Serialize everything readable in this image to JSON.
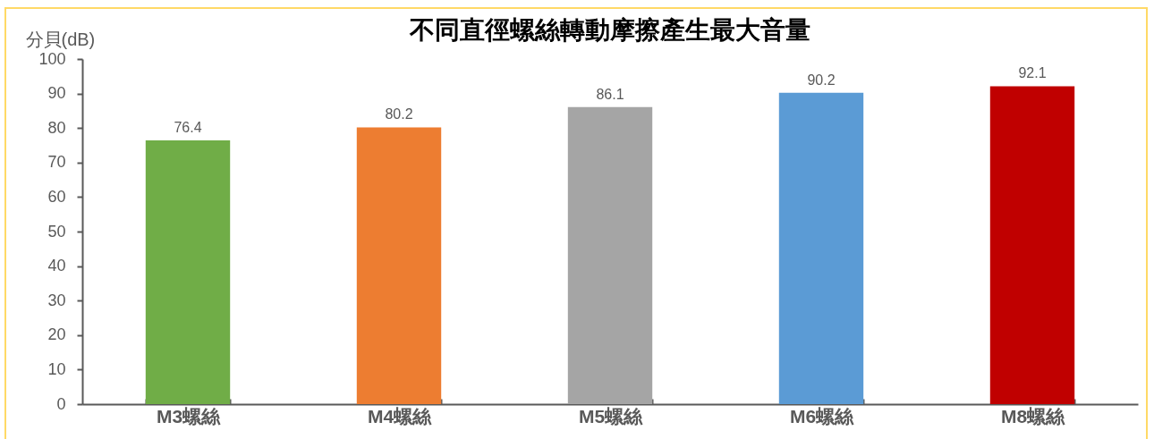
{
  "chart_data": {
    "type": "bar",
    "title": "不同直徑螺絲轉動摩擦產生最大音量",
    "ylabel": "分貝(dB)",
    "categories": [
      "M3螺絲",
      "M4螺絲",
      "M5螺絲",
      "M6螺絲",
      "M8螺絲"
    ],
    "values": [
      76.4,
      80.2,
      86.1,
      90.2,
      92.1
    ],
    "colors": [
      "#70ad47",
      "#ed7d31",
      "#a5a5a5",
      "#5b9bd5",
      "#c00000"
    ],
    "ylim": [
      0,
      100
    ],
    "yticks": [
      0,
      10,
      20,
      30,
      40,
      50,
      60,
      70,
      80,
      90,
      100
    ],
    "grid": false,
    "data_labels": true
  }
}
